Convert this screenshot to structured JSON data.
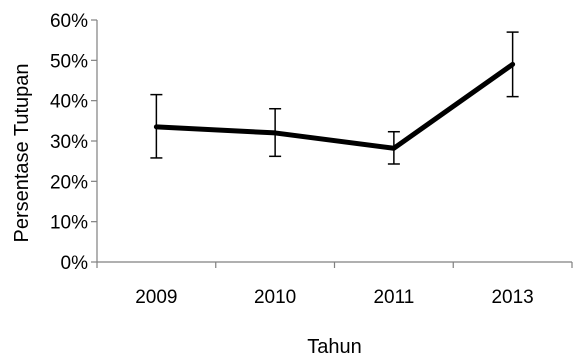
{
  "chart_data": {
    "type": "line",
    "categories": [
      "2009",
      "2010",
      "2011",
      "2013"
    ],
    "series": [
      {
        "values": [
          33.5,
          32.0,
          28.2,
          49.0
        ],
        "error_low": [
          25.8,
          26.2,
          24.3,
          41.0
        ],
        "error_high": [
          41.5,
          38.0,
          32.3,
          57.0
        ]
      }
    ],
    "title": "",
    "xlabel": "Tahun",
    "ylabel": "Persentase Tutupan",
    "ylim": [
      0,
      60
    ],
    "y_ticks": [
      "0%",
      "10%",
      "20%",
      "30%",
      "40%",
      "50%",
      "60%"
    ],
    "grid": false,
    "legend": "none",
    "line_color": "#000000"
  }
}
